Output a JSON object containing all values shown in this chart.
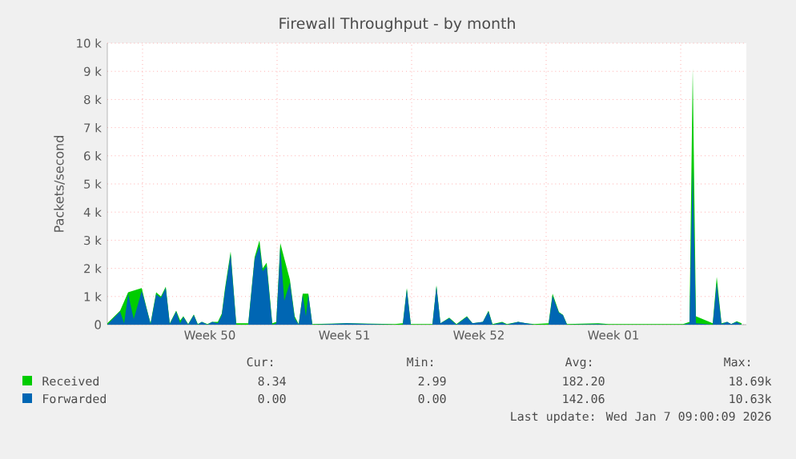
{
  "chart_data": {
    "type": "area",
    "title": "Firewall Throughput - by month",
    "ylabel": "Packets/second",
    "x": [
      "2025-12-06T04:00",
      "2025-12-06T20:00",
      "2025-12-07T01:00",
      "2025-12-07T06:00",
      "2025-12-07T13:00",
      "2025-12-07T23:00",
      "2025-12-08T05:00",
      "2025-12-08T10:00",
      "2025-12-08T17:00",
      "2025-12-08T23:00",
      "2025-12-09T05:00",
      "2025-12-09T10:00",
      "2025-12-09T18:00",
      "2025-12-09T23:00",
      "2025-12-10T03:00",
      "2025-12-10T09:00",
      "2025-12-10T16:00",
      "2025-12-10T21:00",
      "2025-12-11T02:00",
      "2025-12-11T09:00",
      "2025-12-11T15:00",
      "2025-12-11T22:00",
      "2025-12-12T03:00",
      "2025-12-12T07:00",
      "2025-12-12T14:00",
      "2025-12-12T21:00",
      "2025-12-13T12:00",
      "2025-12-13T20:00",
      "2025-12-14T02:00",
      "2025-12-14T06:00",
      "2025-12-14T11:00",
      "2025-12-14T18:00",
      "2025-12-14T23:00",
      "2025-12-15T04:00",
      "2025-12-15T09:00",
      "2025-12-15T16:00",
      "2025-12-15T22:00",
      "2025-12-16T03:00",
      "2025-12-16T08:00",
      "2025-12-16T12:00",
      "2025-12-16T15:00",
      "2025-12-16T20:00",
      "2025-12-18T15:00",
      "2025-12-21T03:00",
      "2025-12-21T13:00",
      "2025-12-21T18:00",
      "2025-12-21T23:00",
      "2025-12-23T02:00",
      "2025-12-23T07:00",
      "2025-12-23T12:00",
      "2025-12-23T23:00",
      "2025-12-24T08:00",
      "2025-12-24T21:00",
      "2025-12-25T04:00",
      "2025-12-25T17:00",
      "2025-12-26T00:00",
      "2025-12-26T05:00",
      "2025-12-26T17:00",
      "2025-12-26T23:00",
      "2025-12-27T13:00",
      "2025-12-27T23:00",
      "2025-12-28T09:00",
      "2025-12-29T03:00",
      "2025-12-29T08:00",
      "2025-12-29T16:00",
      "2025-12-29T21:00",
      "2025-12-30T02:00",
      "2025-12-31T17:00",
      "2026-01-01T06:00",
      "2026-01-05T03:00",
      "2026-01-05T11:00",
      "2026-01-05T15:00",
      "2026-01-05T19:00",
      "2026-01-06T16:00",
      "2026-01-06T21:00",
      "2026-01-07T03:00",
      "2026-01-07T10:00",
      "2026-01-07T15:00",
      "2026-01-07T22:00",
      "2026-01-08T04:00"
    ],
    "series": [
      {
        "name": "Received",
        "color": "#00cc00",
        "values": [
          50,
          500,
          null,
          1150,
          null,
          1300,
          600,
          50,
          1150,
          1000,
          1350,
          50,
          500,
          150,
          300,
          20,
          360,
          20,
          100,
          20,
          100,
          100,
          400,
          1300,
          2600,
          50,
          50,
          2400,
          3000,
          2000,
          2200,
          50,
          100,
          2900,
          null,
          1600,
          300,
          20,
          1100,
          null,
          1100,
          20,
          50,
          20,
          50,
          1300,
          20,
          20,
          1400,
          50,
          250,
          20,
          300,
          50,
          100,
          500,
          20,
          100,
          20,
          100,
          50,
          20,
          50,
          1100,
          450,
          350,
          20,
          50,
          20,
          20,
          100,
          9100,
          300,
          50,
          1700,
          50,
          100,
          20,
          120,
          50
        ]
      },
      {
        "name": "Forwarded",
        "color": "#0066b3",
        "values": [
          0,
          470,
          50,
          1100,
          200,
          1200,
          570,
          20,
          1080,
          950,
          1300,
          20,
          470,
          50,
          280,
          0,
          340,
          0,
          100,
          0,
          100,
          50,
          340,
          1200,
          2500,
          0,
          0,
          2330,
          2800,
          1900,
          2080,
          0,
          50,
          2750,
          850,
          1500,
          230,
          0,
          1060,
          300,
          1080,
          0,
          50,
          0,
          0,
          1250,
          0,
          0,
          1360,
          50,
          230,
          0,
          280,
          50,
          100,
          470,
          0,
          80,
          0,
          100,
          50,
          0,
          0,
          1020,
          420,
          340,
          0,
          20,
          0,
          0,
          50,
          5600,
          50,
          0,
          1480,
          20,
          100,
          20,
          100,
          0
        ]
      }
    ],
    "xlim": [
      "2025-12-06T04:00",
      "2026-01-08T10:00"
    ],
    "xticks": [
      {
        "value": "2025-12-08T00:00",
        "label": null
      },
      {
        "value": "2025-12-11T12:00",
        "label": "Week 50"
      },
      {
        "value": "2025-12-15T00:00",
        "label": null
      },
      {
        "value": "2025-12-18T12:00",
        "label": "Week 51"
      },
      {
        "value": "2025-12-22T00:00",
        "label": null
      },
      {
        "value": "2025-12-25T12:00",
        "label": "Week 52"
      },
      {
        "value": "2025-12-29T00:00",
        "label": null
      },
      {
        "value": "2026-01-01T12:00",
        "label": "Week 01"
      },
      {
        "value": "2026-01-05T00:00",
        "label": null
      }
    ],
    "ylim": [
      0,
      10000
    ],
    "yticks": [
      0,
      {
        "value": 1000,
        "label": "1 k"
      },
      {
        "value": 2000,
        "label": "2 k"
      },
      {
        "value": 3000,
        "label": "3 k"
      },
      {
        "value": 4000,
        "label": "4 k"
      },
      {
        "value": 5000,
        "label": "5 k"
      },
      {
        "value": 6000,
        "label": "6 k"
      },
      {
        "value": 7000,
        "label": "7 k"
      },
      {
        "value": 8000,
        "label": "8 k"
      },
      {
        "value": 9000,
        "label": "9 k"
      },
      {
        "value": 10000,
        "label": "10 k"
      }
    ],
    "grid": true,
    "legend": "bottom",
    "annotations": [
      "Cur:",
      "Min:",
      "Avg:",
      "Max:",
      "8.34",
      "2.99",
      "182.20",
      "18.69k",
      "0.00",
      "0.00",
      "142.06",
      "10.63k",
      "Last update: Wed Jan  7 09:00:09 2026"
    ]
  }
}
